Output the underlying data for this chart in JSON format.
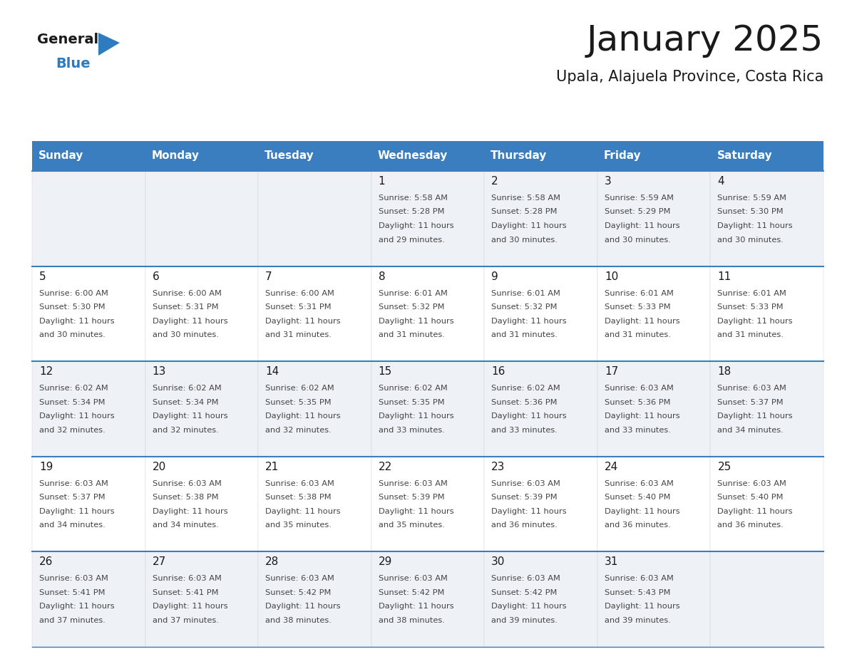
{
  "title": "January 2025",
  "subtitle": "Upala, Alajuela Province, Costa Rica",
  "days_of_week": [
    "Sunday",
    "Monday",
    "Tuesday",
    "Wednesday",
    "Thursday",
    "Friday",
    "Saturday"
  ],
  "header_bg": "#3a7ebf",
  "header_text": "#ffffff",
  "border_color": "#3a7ebf",
  "text_color": "#333333",
  "calendar_data": [
    {
      "day": 1,
      "col": 3,
      "row": 0,
      "sunrise": "5:58 AM",
      "sunset": "5:28 PM",
      "daylight_h": "11 hours",
      "daylight_m": "and 29 minutes."
    },
    {
      "day": 2,
      "col": 4,
      "row": 0,
      "sunrise": "5:58 AM",
      "sunset": "5:28 PM",
      "daylight_h": "11 hours",
      "daylight_m": "and 30 minutes."
    },
    {
      "day": 3,
      "col": 5,
      "row": 0,
      "sunrise": "5:59 AM",
      "sunset": "5:29 PM",
      "daylight_h": "11 hours",
      "daylight_m": "and 30 minutes."
    },
    {
      "day": 4,
      "col": 6,
      "row": 0,
      "sunrise": "5:59 AM",
      "sunset": "5:30 PM",
      "daylight_h": "11 hours",
      "daylight_m": "and 30 minutes."
    },
    {
      "day": 5,
      "col": 0,
      "row": 1,
      "sunrise": "6:00 AM",
      "sunset": "5:30 PM",
      "daylight_h": "11 hours",
      "daylight_m": "and 30 minutes."
    },
    {
      "day": 6,
      "col": 1,
      "row": 1,
      "sunrise": "6:00 AM",
      "sunset": "5:31 PM",
      "daylight_h": "11 hours",
      "daylight_m": "and 30 minutes."
    },
    {
      "day": 7,
      "col": 2,
      "row": 1,
      "sunrise": "6:00 AM",
      "sunset": "5:31 PM",
      "daylight_h": "11 hours",
      "daylight_m": "and 31 minutes."
    },
    {
      "day": 8,
      "col": 3,
      "row": 1,
      "sunrise": "6:01 AM",
      "sunset": "5:32 PM",
      "daylight_h": "11 hours",
      "daylight_m": "and 31 minutes."
    },
    {
      "day": 9,
      "col": 4,
      "row": 1,
      "sunrise": "6:01 AM",
      "sunset": "5:32 PM",
      "daylight_h": "11 hours",
      "daylight_m": "and 31 minutes."
    },
    {
      "day": 10,
      "col": 5,
      "row": 1,
      "sunrise": "6:01 AM",
      "sunset": "5:33 PM",
      "daylight_h": "11 hours",
      "daylight_m": "and 31 minutes."
    },
    {
      "day": 11,
      "col": 6,
      "row": 1,
      "sunrise": "6:01 AM",
      "sunset": "5:33 PM",
      "daylight_h": "11 hours",
      "daylight_m": "and 31 minutes."
    },
    {
      "day": 12,
      "col": 0,
      "row": 2,
      "sunrise": "6:02 AM",
      "sunset": "5:34 PM",
      "daylight_h": "11 hours",
      "daylight_m": "and 32 minutes."
    },
    {
      "day": 13,
      "col": 1,
      "row": 2,
      "sunrise": "6:02 AM",
      "sunset": "5:34 PM",
      "daylight_h": "11 hours",
      "daylight_m": "and 32 minutes."
    },
    {
      "day": 14,
      "col": 2,
      "row": 2,
      "sunrise": "6:02 AM",
      "sunset": "5:35 PM",
      "daylight_h": "11 hours",
      "daylight_m": "and 32 minutes."
    },
    {
      "day": 15,
      "col": 3,
      "row": 2,
      "sunrise": "6:02 AM",
      "sunset": "5:35 PM",
      "daylight_h": "11 hours",
      "daylight_m": "and 33 minutes."
    },
    {
      "day": 16,
      "col": 4,
      "row": 2,
      "sunrise": "6:02 AM",
      "sunset": "5:36 PM",
      "daylight_h": "11 hours",
      "daylight_m": "and 33 minutes."
    },
    {
      "day": 17,
      "col": 5,
      "row": 2,
      "sunrise": "6:03 AM",
      "sunset": "5:36 PM",
      "daylight_h": "11 hours",
      "daylight_m": "and 33 minutes."
    },
    {
      "day": 18,
      "col": 6,
      "row": 2,
      "sunrise": "6:03 AM",
      "sunset": "5:37 PM",
      "daylight_h": "11 hours",
      "daylight_m": "and 34 minutes."
    },
    {
      "day": 19,
      "col": 0,
      "row": 3,
      "sunrise": "6:03 AM",
      "sunset": "5:37 PM",
      "daylight_h": "11 hours",
      "daylight_m": "and 34 minutes."
    },
    {
      "day": 20,
      "col": 1,
      "row": 3,
      "sunrise": "6:03 AM",
      "sunset": "5:38 PM",
      "daylight_h": "11 hours",
      "daylight_m": "and 34 minutes."
    },
    {
      "day": 21,
      "col": 2,
      "row": 3,
      "sunrise": "6:03 AM",
      "sunset": "5:38 PM",
      "daylight_h": "11 hours",
      "daylight_m": "and 35 minutes."
    },
    {
      "day": 22,
      "col": 3,
      "row": 3,
      "sunrise": "6:03 AM",
      "sunset": "5:39 PM",
      "daylight_h": "11 hours",
      "daylight_m": "and 35 minutes."
    },
    {
      "day": 23,
      "col": 4,
      "row": 3,
      "sunrise": "6:03 AM",
      "sunset": "5:39 PM",
      "daylight_h": "11 hours",
      "daylight_m": "and 36 minutes."
    },
    {
      "day": 24,
      "col": 5,
      "row": 3,
      "sunrise": "6:03 AM",
      "sunset": "5:40 PM",
      "daylight_h": "11 hours",
      "daylight_m": "and 36 minutes."
    },
    {
      "day": 25,
      "col": 6,
      "row": 3,
      "sunrise": "6:03 AM",
      "sunset": "5:40 PM",
      "daylight_h": "11 hours",
      "daylight_m": "and 36 minutes."
    },
    {
      "day": 26,
      "col": 0,
      "row": 4,
      "sunrise": "6:03 AM",
      "sunset": "5:41 PM",
      "daylight_h": "11 hours",
      "daylight_m": "and 37 minutes."
    },
    {
      "day": 27,
      "col": 1,
      "row": 4,
      "sunrise": "6:03 AM",
      "sunset": "5:41 PM",
      "daylight_h": "11 hours",
      "daylight_m": "and 37 minutes."
    },
    {
      "day": 28,
      "col": 2,
      "row": 4,
      "sunrise": "6:03 AM",
      "sunset": "5:42 PM",
      "daylight_h": "11 hours",
      "daylight_m": "and 38 minutes."
    },
    {
      "day": 29,
      "col": 3,
      "row": 4,
      "sunrise": "6:03 AM",
      "sunset": "5:42 PM",
      "daylight_h": "11 hours",
      "daylight_m": "and 38 minutes."
    },
    {
      "day": 30,
      "col": 4,
      "row": 4,
      "sunrise": "6:03 AM",
      "sunset": "5:42 PM",
      "daylight_h": "11 hours",
      "daylight_m": "and 39 minutes."
    },
    {
      "day": 31,
      "col": 5,
      "row": 4,
      "sunrise": "6:03 AM",
      "sunset": "5:43 PM",
      "daylight_h": "11 hours",
      "daylight_m": "and 39 minutes."
    }
  ],
  "num_rows": 5,
  "num_cols": 7
}
